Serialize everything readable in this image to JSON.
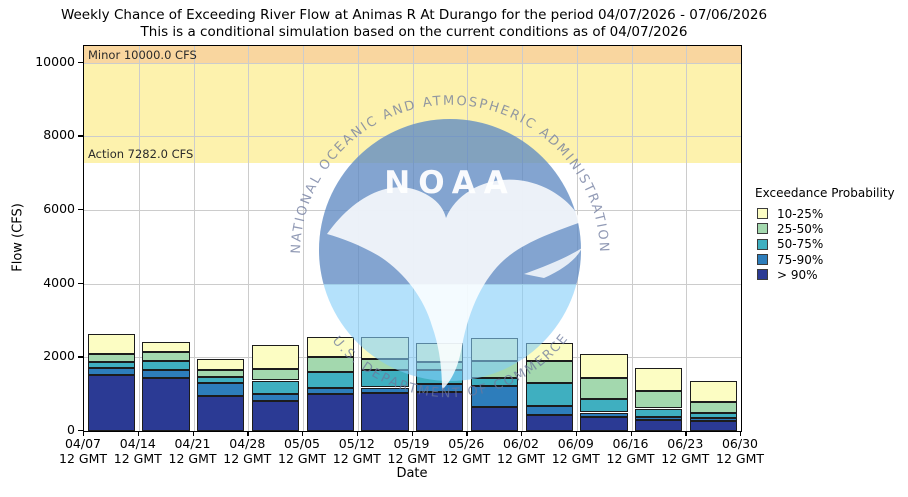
{
  "title": {
    "line1": "Weekly Chance of Exceeding River Flow at Animas R At Durango for the period 04/07/2026 - 07/06/2026",
    "line2": "This is a conditional simulation based on the current conditions as of 04/07/2026"
  },
  "axes": {
    "x_label": "Date",
    "y_label": "Flow (CFS)",
    "y_ticks": [
      "0",
      "2000",
      "4000",
      "6000",
      "8000",
      "10000"
    ],
    "x_tick_labels": [
      {
        "date": "04/07",
        "gmt": "12 GMT"
      },
      {
        "date": "04/14",
        "gmt": "12 GMT"
      },
      {
        "date": "04/21",
        "gmt": "12 GMT"
      },
      {
        "date": "04/28",
        "gmt": "12 GMT"
      },
      {
        "date": "05/05",
        "gmt": "12 GMT"
      },
      {
        "date": "05/12",
        "gmt": "12 GMT"
      },
      {
        "date": "05/19",
        "gmt": "12 GMT"
      },
      {
        "date": "05/26",
        "gmt": "12 GMT"
      },
      {
        "date": "06/02",
        "gmt": "12 GMT"
      },
      {
        "date": "06/09",
        "gmt": "12 GMT"
      },
      {
        "date": "06/16",
        "gmt": "12 GMT"
      },
      {
        "date": "06/23",
        "gmt": "12 GMT"
      },
      {
        "date": "06/30",
        "gmt": "12 GMT"
      }
    ]
  },
  "legend": {
    "title": "Exceedance Probability",
    "items": [
      {
        "label": "10-25%",
        "color": "#fcfdc3"
      },
      {
        "label": "25-50%",
        "color": "#a3d8ae"
      },
      {
        "label": "50-75%",
        "color": "#3fafc0"
      },
      {
        "label": "75-90%",
        "color": "#2d7dbb"
      },
      {
        "label": "> 90%",
        "color": "#2b3a94"
      }
    ]
  },
  "watermark": {
    "ring_top": "NATIONAL OCEANIC AND ATMOSPHERIC ADMINISTRATION",
    "ring_bottom": "U.S. DEPARTMENT OF COMMERCE",
    "monogram": "NOAA"
  },
  "chart_data": {
    "type": "bar",
    "stacked": true,
    "title": "Weekly Chance of Exceeding River Flow at Animas R At Durango",
    "xlabel": "Date",
    "ylabel": "Flow (CFS)",
    "ylim": [
      0,
      10450
    ],
    "grid": true,
    "legend_position": "right",
    "categories": [
      "04/07",
      "04/14",
      "04/21",
      "04/28",
      "05/05",
      "05/12",
      "05/19",
      "05/26",
      "06/02",
      "06/09",
      "06/16",
      "06/23"
    ],
    "series": [
      {
        "name": "> 90%",
        "color": "#2b3a94",
        "cumulative_tops_cfs": [
          1520,
          1440,
          960,
          820,
          1000,
          1040,
          1050,
          660,
          440,
          390,
          300,
          280
        ]
      },
      {
        "name": "75-90%",
        "color": "#2d7dbb",
        "cumulative_tops_cfs": [
          1700,
          1660,
          1300,
          1010,
          1160,
          1180,
          1270,
          1210,
          680,
          500,
          390,
          360
        ]
      },
      {
        "name": "50-75%",
        "color": "#3fafc0",
        "cumulative_tops_cfs": [
          1880,
          1910,
          1460,
          1370,
          1590,
          1650,
          1660,
          1430,
          1300,
          870,
          610,
          480
        ]
      },
      {
        "name": "25-50%",
        "color": "#a3d8ae",
        "cumulative_tops_cfs": [
          2100,
          2140,
          1660,
          1680,
          2020,
          1950,
          1880,
          1910,
          1910,
          1430,
          1090,
          780
        ]
      },
      {
        "name": "10-25%",
        "color": "#fcfdc3",
        "cumulative_tops_cfs": [
          2640,
          2420,
          1950,
          2340,
          2550,
          2540,
          2390,
          2520,
          2390,
          2100,
          1700,
          1360
        ]
      }
    ],
    "thresholds": [
      {
        "name": "Minor",
        "label": "Minor 10000.0 CFS",
        "value_cfs": 10000,
        "band_from": 10000,
        "band_to": 10450,
        "band_color": "#f9d69f"
      },
      {
        "name": "Action",
        "label": "Action 7282.0 CFS",
        "value_cfs": 7282,
        "band_from": 7282,
        "band_to": 10000,
        "band_color": "#fdf2ad"
      }
    ]
  }
}
